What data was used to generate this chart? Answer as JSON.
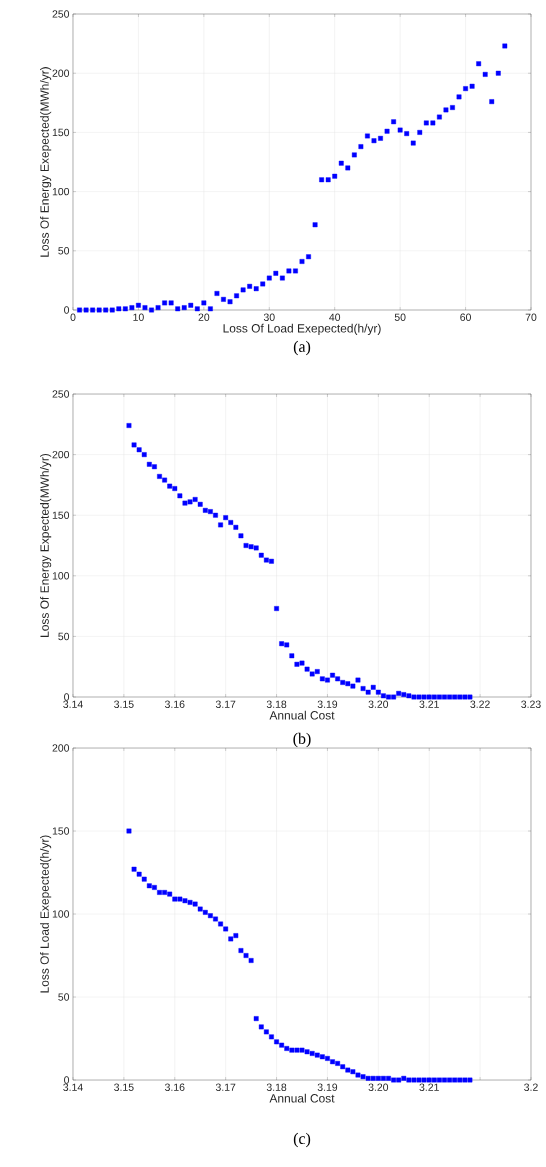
{
  "chart_data": [
    {
      "type": "scatter",
      "xlabel": "Loss Of Load Exepected(h/yr)",
      "ylabel": "Loss Of Energy Exepected(MWh/yr)",
      "color": "#0000ff",
      "marker": "square",
      "grid": true,
      "annotations": [
        "(a)"
      ],
      "xlim": [
        0,
        70
      ],
      "ylim": [
        0,
        250
      ],
      "xticks": [
        0,
        10,
        20,
        30,
        40,
        50,
        60,
        70
      ],
      "yticks": [
        0,
        50,
        100,
        150,
        200,
        250
      ],
      "x": [
        1,
        2,
        3,
        4,
        5,
        6,
        7,
        8,
        9,
        10,
        11,
        12,
        13,
        14,
        15,
        16,
        17,
        18,
        19,
        20,
        21,
        22,
        23,
        24,
        25,
        26,
        27,
        28,
        29,
        30,
        31,
        32,
        33,
        34,
        35,
        36,
        37,
        38,
        39,
        40,
        41,
        42,
        43,
        44,
        45,
        46,
        47,
        48,
        49,
        50,
        51,
        52,
        53,
        54,
        55,
        56,
        57,
        58,
        59,
        60,
        61,
        62,
        63,
        64,
        65,
        66
      ],
      "values": [
        0,
        0,
        0,
        0,
        0,
        0,
        1,
        1,
        2,
        4,
        2,
        0,
        2,
        6,
        6,
        1,
        2,
        4,
        1,
        6,
        1,
        14,
        9,
        7,
        12,
        17,
        20,
        18,
        22,
        27,
        31,
        27,
        33,
        33,
        41,
        45,
        72,
        110,
        110,
        113,
        124,
        120,
        131,
        138,
        147,
        143,
        145,
        151,
        159,
        152,
        149,
        141,
        150,
        158,
        158,
        163,
        169,
        171,
        180,
        187,
        189,
        208,
        199,
        176,
        200,
        223
      ]
    },
    {
      "type": "scatter",
      "xlabel": "Annual Cost",
      "ylabel": "Loss Of Energy Expected(MWh/yr)",
      "color": "#0000ff",
      "marker": "square",
      "grid": true,
      "annotations": [
        "(b)"
      ],
      "xlim": [
        3.14,
        3.23
      ],
      "ylim": [
        0,
        250
      ],
      "xticks": [
        3.14,
        3.15,
        3.16,
        3.17,
        3.18,
        3.19,
        {
          "value": 3.2,
          "label": "3.20"
        },
        3.21,
        3.22,
        3.23
      ],
      "yticks": [
        0,
        50,
        100,
        150,
        200,
        250
      ],
      "x": [
        3.151,
        3.152,
        3.153,
        3.154,
        3.155,
        3.156,
        3.157,
        3.158,
        3.159,
        3.16,
        3.161,
        3.162,
        3.163,
        3.164,
        3.165,
        3.166,
        3.167,
        3.168,
        3.169,
        3.17,
        3.171,
        3.172,
        3.173,
        3.174,
        3.175,
        3.176,
        3.177,
        3.178,
        3.179,
        3.18,
        3.181,
        3.182,
        3.183,
        3.184,
        3.185,
        3.186,
        3.187,
        3.188,
        3.189,
        3.19,
        3.191,
        3.192,
        3.193,
        3.194,
        3.195,
        3.196,
        3.197,
        3.198,
        3.199,
        3.2,
        3.201,
        3.202,
        3.203,
        3.204,
        3.205,
        3.206,
        3.207,
        3.208,
        3.209,
        3.21,
        3.211,
        3.212,
        3.213,
        3.214,
        3.215,
        3.216,
        3.217,
        3.218
      ],
      "values": [
        224,
        208,
        204,
        200,
        192,
        190,
        182,
        179,
        174,
        172,
        166,
        160,
        161,
        163,
        159,
        154,
        153,
        150,
        142,
        148,
        144,
        140,
        133,
        125,
        124,
        123,
        117,
        113,
        112,
        73,
        44,
        43,
        34,
        27,
        28,
        23,
        19,
        21,
        15,
        14,
        18,
        15,
        12,
        11,
        9,
        14,
        7,
        4,
        8,
        4,
        1,
        0,
        0,
        3,
        2,
        1,
        0,
        0,
        0,
        0,
        0,
        0,
        0,
        0,
        0,
        0,
        0,
        0
      ]
    },
    {
      "type": "scatter",
      "xlabel": "Annual Cost",
      "ylabel": "Loss Of Load Exepected(h/yr)",
      "color": "#0000ff",
      "marker": "square",
      "grid": true,
      "annotations": [
        "(c)"
      ],
      "xlim": [
        3.14,
        3.23
      ],
      "ylim": [
        0,
        200
      ],
      "xticks": [
        3.14,
        3.15,
        3.16,
        3.17,
        3.18,
        3.19,
        {
          "value": 3.2,
          "label": "3.20"
        },
        3.21,
        {
          "value": 3.22,
          "label": null
        },
        {
          "value": 3.23,
          "label": "3.2"
        }
      ],
      "yticks": [
        0,
        50,
        100,
        150,
        200
      ],
      "x": [
        3.151,
        3.152,
        3.153,
        3.154,
        3.155,
        3.156,
        3.157,
        3.158,
        3.159,
        3.16,
        3.161,
        3.162,
        3.163,
        3.164,
        3.165,
        3.166,
        3.167,
        3.168,
        3.169,
        3.17,
        3.171,
        3.172,
        3.173,
        3.174,
        3.175,
        3.176,
        3.177,
        3.178,
        3.179,
        3.18,
        3.181,
        3.182,
        3.183,
        3.184,
        3.185,
        3.186,
        3.187,
        3.188,
        3.189,
        3.19,
        3.191,
        3.192,
        3.193,
        3.194,
        3.195,
        3.196,
        3.197,
        3.198,
        3.199,
        3.2,
        3.201,
        3.202,
        3.203,
        3.204,
        3.205,
        3.206,
        3.207,
        3.208,
        3.209,
        3.21,
        3.211,
        3.212,
        3.213,
        3.214,
        3.215,
        3.216,
        3.217,
        3.218
      ],
      "values": [
        150,
        127,
        124,
        121,
        117,
        116,
        113,
        113,
        112,
        109,
        109,
        108,
        107,
        106,
        103,
        101,
        99,
        97,
        94,
        91,
        85,
        87,
        78,
        75,
        72,
        37,
        32,
        29,
        26,
        23,
        21,
        19,
        18,
        18,
        18,
        17,
        16,
        15,
        14,
        13,
        11,
        10,
        8,
        6,
        5,
        3,
        2,
        1,
        1,
        1,
        1,
        1,
        0,
        0,
        1,
        0,
        0,
        0,
        0,
        0,
        0,
        0,
        0,
        0,
        0,
        0,
        0,
        0
      ]
    }
  ]
}
